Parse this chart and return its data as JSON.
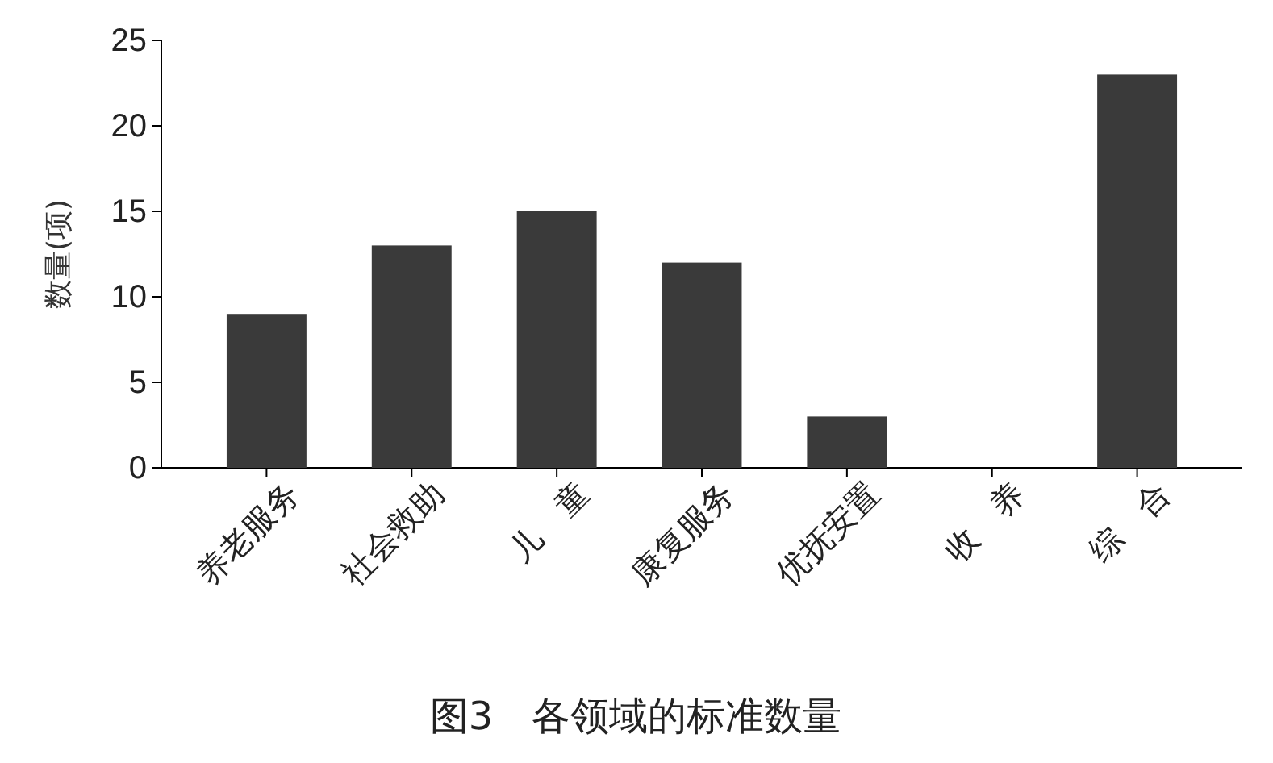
{
  "chart_data": {
    "type": "bar",
    "title": "图3　各领域的标准数量",
    "ylabel": "数量(项)",
    "categories": [
      "养老服务",
      "社会救助",
      "儿　童",
      "康复服务",
      "优抚安置",
      "收　养",
      "综　合"
    ],
    "series": [
      {
        "color": "#3a3a3a",
        "values": [
          9,
          13,
          15,
          12,
          3,
          0,
          23
        ]
      }
    ],
    "ylim": [
      0,
      25
    ],
    "yticks": [
      0,
      5,
      10,
      15,
      20,
      25
    ],
    "grid": false
  }
}
